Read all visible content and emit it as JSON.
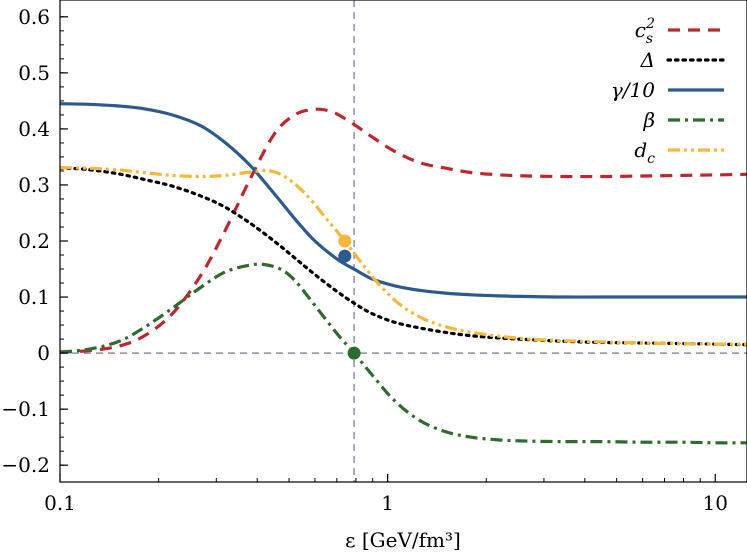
{
  "chart_data": {
    "type": "line",
    "xlabel": "ε [GeV/fm³]",
    "ylabel": "",
    "x_scale": "log",
    "xlim": [
      0.1,
      12.5
    ],
    "ylim": [
      -0.23,
      0.63
    ],
    "x_ticks": [
      {
        "value": 0.1,
        "label": "0.1"
      },
      {
        "value": 1,
        "label": "1"
      },
      {
        "value": 10,
        "label": "10"
      }
    ],
    "y_ticks": [
      {
        "value": 0.6,
        "label": "0.6"
      },
      {
        "value": 0.5,
        "label": "0.5"
      },
      {
        "value": 0.4,
        "label": "0.4"
      },
      {
        "value": 0.3,
        "label": "0.3"
      },
      {
        "value": 0.2,
        "label": "0.2"
      },
      {
        "value": 0.1,
        "label": "0.1"
      },
      {
        "value": 0.0,
        "label": "0"
      },
      {
        "value": -0.1,
        "label": "−0.1"
      },
      {
        "value": -0.2,
        "label": "−0.2"
      }
    ],
    "reference_lines": {
      "x": 0.79,
      "y": 0.0,
      "color": "#8a8fa8"
    },
    "legend_position": "top-right",
    "series": [
      {
        "name": "c_s^2",
        "color": "#c0272d",
        "dash": "12 8",
        "x": [
          0.1,
          0.12,
          0.15,
          0.18,
          0.22,
          0.27,
          0.32,
          0.38,
          0.45,
          0.52,
          0.6,
          0.68,
          0.78,
          0.9,
          1.05,
          1.25,
          1.5,
          1.8,
          2.2,
          2.7,
          3.5,
          4.5,
          6.0,
          8.0,
          10.0,
          12.5
        ],
        "y": [
          0.002,
          0.004,
          0.012,
          0.03,
          0.07,
          0.14,
          0.22,
          0.31,
          0.39,
          0.425,
          0.435,
          0.43,
          0.41,
          0.385,
          0.36,
          0.34,
          0.33,
          0.322,
          0.318,
          0.316,
          0.315,
          0.315,
          0.316,
          0.317,
          0.318,
          0.319
        ]
      },
      {
        "name": "Δ",
        "color": "#000000",
        "dash": "2.5 5",
        "x": [
          0.1,
          0.12,
          0.15,
          0.18,
          0.22,
          0.27,
          0.32,
          0.38,
          0.45,
          0.52,
          0.6,
          0.7,
          0.8,
          0.9,
          1.05,
          1.25,
          1.5,
          1.8,
          2.2,
          2.7,
          3.5,
          4.5,
          6.0,
          8.0,
          10.0,
          12.5
        ],
        "y": [
          0.33,
          0.328,
          0.32,
          0.31,
          0.298,
          0.28,
          0.26,
          0.232,
          0.2,
          0.17,
          0.14,
          0.11,
          0.087,
          0.07,
          0.055,
          0.045,
          0.037,
          0.031,
          0.027,
          0.024,
          0.021,
          0.019,
          0.018,
          0.017,
          0.016,
          0.015
        ]
      },
      {
        "name": "γ/10",
        "color": "#2d5a8e",
        "dash": "",
        "x": [
          0.1,
          0.12,
          0.15,
          0.18,
          0.22,
          0.27,
          0.32,
          0.38,
          0.45,
          0.52,
          0.6,
          0.7,
          0.8,
          0.9,
          1.05,
          1.25,
          1.5,
          1.8,
          2.2,
          2.7,
          3.5,
          4.5,
          6.0,
          8.0,
          10.0,
          12.5
        ],
        "y": [
          0.445,
          0.444,
          0.441,
          0.436,
          0.425,
          0.405,
          0.375,
          0.335,
          0.285,
          0.24,
          0.2,
          0.168,
          0.148,
          0.132,
          0.12,
          0.112,
          0.107,
          0.104,
          0.102,
          0.101,
          0.1,
          0.1,
          0.1,
          0.1,
          0.1,
          0.1
        ]
      },
      {
        "name": "β",
        "color": "#2e6b2e",
        "dash": "12 5 3 5",
        "x": [
          0.1,
          0.12,
          0.15,
          0.18,
          0.22,
          0.27,
          0.32,
          0.38,
          0.42,
          0.47,
          0.52,
          0.6,
          0.7,
          0.79,
          0.9,
          1.05,
          1.25,
          1.5,
          1.8,
          2.2,
          2.7,
          3.5,
          4.5,
          6.0,
          8.0,
          10.0,
          12.5
        ],
        "y": [
          0.002,
          0.006,
          0.02,
          0.045,
          0.08,
          0.118,
          0.145,
          0.157,
          0.158,
          0.15,
          0.13,
          0.085,
          0.035,
          0.0,
          -0.04,
          -0.085,
          -0.12,
          -0.14,
          -0.15,
          -0.155,
          -0.157,
          -0.158,
          -0.158,
          -0.159,
          -0.159,
          -0.16,
          -0.16
        ]
      },
      {
        "name": "d_c",
        "color": "#f6b73c",
        "dash": "12 4 3 4 3 4",
        "x": [
          0.1,
          0.12,
          0.15,
          0.18,
          0.22,
          0.27,
          0.32,
          0.38,
          0.44,
          0.5,
          0.57,
          0.65,
          0.74,
          0.83,
          0.95,
          1.1,
          1.3,
          1.55,
          1.85,
          2.2,
          2.7,
          3.5,
          4.5,
          6.0,
          8.0,
          10.0,
          12.5
        ],
        "y": [
          0.331,
          0.33,
          0.327,
          0.322,
          0.317,
          0.315,
          0.317,
          0.323,
          0.325,
          0.31,
          0.28,
          0.24,
          0.2,
          0.162,
          0.12,
          0.085,
          0.06,
          0.045,
          0.036,
          0.03,
          0.025,
          0.022,
          0.02,
          0.018,
          0.017,
          0.016,
          0.016
        ]
      }
    ],
    "markers": [
      {
        "x": 0.74,
        "y": 0.2,
        "color": "#f6b73c"
      },
      {
        "x": 0.74,
        "y": 0.173,
        "color": "#2d5a8e"
      },
      {
        "x": 0.79,
        "y": 0.0,
        "color": "#2e6b2e"
      }
    ]
  },
  "legend": [
    {
      "base": "c",
      "sub": "s",
      "sup": "2"
    },
    {
      "base": "Δ",
      "sub": "",
      "sup": ""
    },
    {
      "base": "γ/10",
      "sub": "",
      "sup": ""
    },
    {
      "base": "β",
      "sub": "",
      "sup": ""
    },
    {
      "base": "d",
      "sub": "c",
      "sup": ""
    }
  ]
}
